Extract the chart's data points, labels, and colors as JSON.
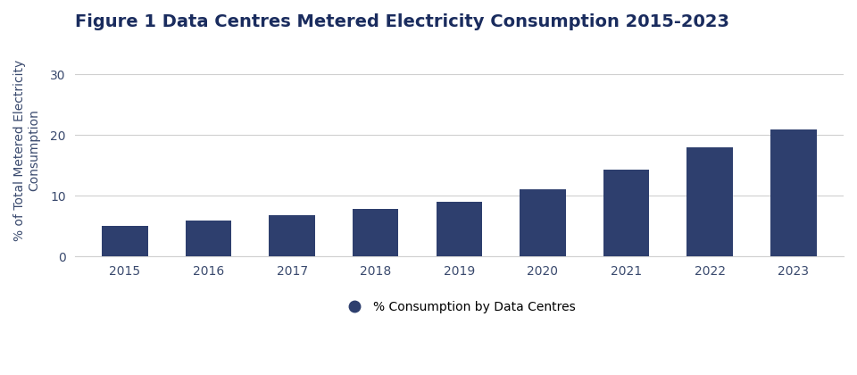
{
  "title": "Figure 1 Data Centres Metered Electricity Consumption 2015-2023",
  "years": [
    2015,
    2016,
    2017,
    2018,
    2019,
    2020,
    2021,
    2022,
    2023
  ],
  "values": [
    5.1,
    6.0,
    6.8,
    7.9,
    9.0,
    11.1,
    14.4,
    18.0,
    21.0
  ],
  "bar_color": "#2e3f6e",
  "ylabel": "% of Total Metered Electricity\nConsumption",
  "ylim": [
    0,
    35
  ],
  "yticks": [
    0,
    10,
    20,
    30
  ],
  "legend_label": "% Consumption by Data Centres",
  "legend_marker_color": "#2e3f6e",
  "background_color": "#ffffff",
  "grid_color": "#d0d0d0",
  "title_color": "#1a2c5e",
  "axis_label_color": "#3a4a6e",
  "tick_color": "#3a4a6e",
  "title_fontsize": 14,
  "ylabel_fontsize": 10,
  "tick_fontsize": 10,
  "legend_fontsize": 10,
  "bar_width": 0.55
}
